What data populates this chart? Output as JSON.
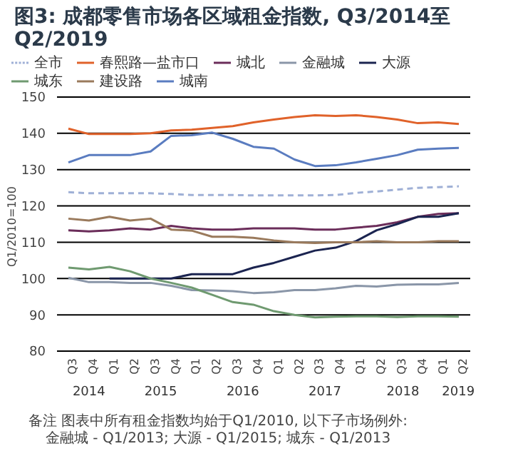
{
  "chart_data": {
    "type": "line",
    "title": "图3: 成都零售市场各区域租金指数, Q3/2014至Q2/2019",
    "ylabel": "Q1/2010=100",
    "categories": [
      "Q3",
      "Q4",
      "Q1",
      "Q2",
      "Q3",
      "Q4",
      "Q1",
      "Q2",
      "Q3",
      "Q4",
      "Q1",
      "Q2",
      "Q3",
      "Q4",
      "Q1",
      "Q2",
      "Q3",
      "Q4",
      "Q1",
      "Q2"
    ],
    "ylim": [
      80,
      150
    ],
    "yticks": [
      80,
      90,
      100,
      110,
      120,
      130,
      140,
      150
    ],
    "grid": "y",
    "legend": "top",
    "marker": "none",
    "series": [
      {
        "name": "全市",
        "color": "#9fb0d6",
        "line_style": "dashed",
        "values": [
          123.8,
          123.5,
          123.5,
          123.5,
          123.5,
          123.3,
          123,
          123,
          123,
          122.9,
          122.9,
          122.9,
          122.9,
          123,
          123.6,
          124,
          124.5,
          125,
          125.2,
          125.4
        ]
      },
      {
        "name": "春熙路—盐市口",
        "color": "#e0622a",
        "values": [
          141.3,
          139.8,
          139.8,
          139.8,
          140,
          140.8,
          141,
          141.5,
          142,
          143,
          143.8,
          144.5,
          145,
          144.8,
          145,
          144.5,
          143.8,
          142.8,
          143,
          142.6
        ]
      },
      {
        "name": "城北",
        "color": "#6b2d5a",
        "values": [
          113.3,
          113,
          113.3,
          113.8,
          113.5,
          114.5,
          113.8,
          113.5,
          113.5,
          113.8,
          113.8,
          113.8,
          113.5,
          113.5,
          114,
          114.5,
          115.5,
          117,
          117.8,
          118
        ]
      },
      {
        "name": "金融城",
        "color": "#8a96a8",
        "values": [
          100.2,
          99,
          99,
          98.8,
          98.8,
          98,
          96.8,
          96.7,
          96.5,
          96,
          96.2,
          96.8,
          96.8,
          97.3,
          98,
          97.8,
          98.3,
          98.4,
          98.4,
          98.8
        ]
      },
      {
        "name": "大源",
        "color": "#1b2450",
        "values": [
          null,
          null,
          100,
          100,
          100,
          100,
          101.2,
          101.2,
          101.2,
          103,
          104.3,
          106,
          107.7,
          108.5,
          110.3,
          113.3,
          115,
          117,
          117,
          118
        ]
      },
      {
        "name": "城东",
        "color": "#6f9a70",
        "values": [
          103,
          102.5,
          103.2,
          102,
          100,
          98.8,
          97.5,
          95.5,
          93.5,
          92.8,
          91,
          90,
          89.3,
          89.5,
          89.6,
          89.6,
          89.4,
          89.6,
          89.6,
          89.5
        ]
      },
      {
        "name": "建设路",
        "color": "#9a7a5c",
        "values": [
          116.5,
          116,
          117,
          116,
          116.5,
          113.5,
          113.2,
          111.5,
          111.5,
          111.2,
          110.5,
          110,
          109.8,
          110,
          110,
          110.3,
          110,
          110,
          110.3,
          110.3
        ]
      },
      {
        "name": "城南",
        "color": "#5a7cc0",
        "values": [
          132,
          134,
          134,
          134,
          135,
          139.3,
          139.5,
          140.2,
          138.5,
          136.3,
          135.8,
          132.8,
          131,
          131.2,
          132,
          133,
          134,
          135.5,
          135.8,
          136
        ]
      }
    ],
    "annotations": [
      "2014",
      "2015",
      "2016",
      "2017",
      "2018",
      "2019",
      "备注 图表中所有租金指数均始于Q1/2010, 以下子市场例外:",
      "金融城 - Q1/2013;  大源 - Q1/2015;  城东 - Q1/2013"
    ]
  }
}
